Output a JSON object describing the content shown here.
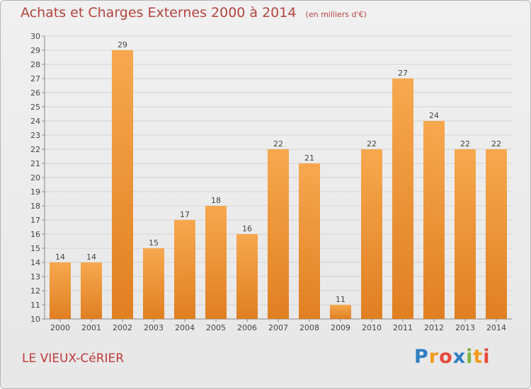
{
  "title": "Achats et Charges Externes 2000 à 2014",
  "unit": "(en milliers d'€)",
  "location": "LE VIEUX-CéRIER",
  "brand": {
    "p": "P",
    "r": "r",
    "o": "o",
    "x": "x",
    "i": "i",
    "t": "t",
    "i2": "i"
  },
  "colors": {
    "bar_top": "#f7a84e",
    "bar_bottom": "#e07f22",
    "title": "#b5443d",
    "grid": "#d3d3d3"
  },
  "chart_data": {
    "type": "bar",
    "categories": [
      "2000",
      "2001",
      "2002",
      "2003",
      "2004",
      "2005",
      "2006",
      "2007",
      "2008",
      "2009",
      "2010",
      "2011",
      "2012",
      "2013",
      "2014"
    ],
    "values": [
      14,
      14,
      29,
      15,
      17,
      18,
      16,
      22,
      21,
      11,
      22,
      27,
      24,
      22,
      22
    ],
    "ylim": [
      10,
      30
    ],
    "yticks": [
      10,
      11,
      12,
      13,
      14,
      15,
      16,
      17,
      18,
      19,
      20,
      21,
      22,
      23,
      24,
      25,
      26,
      27,
      28,
      29,
      30
    ],
    "grid": true,
    "data_labels": true
  }
}
